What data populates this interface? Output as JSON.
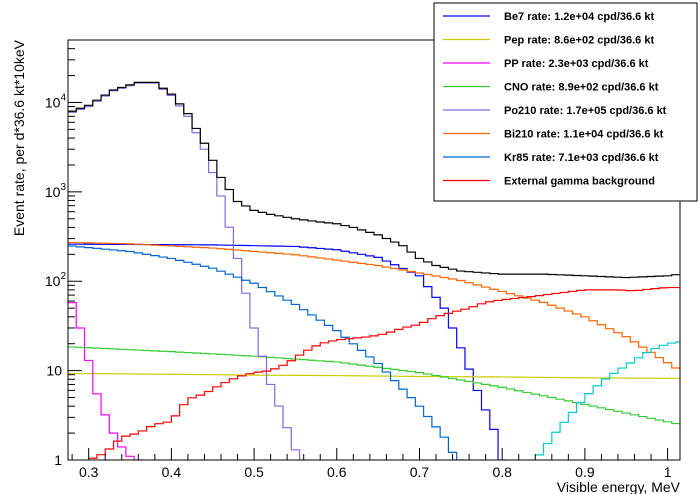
{
  "chart_data": {
    "type": "line",
    "title": "",
    "xlabel": "Visible energy, MeV",
    "ylabel": "Event rate, per d*36.6 kt*10keV",
    "xlim": [
      0.275,
      1.015
    ],
    "ylim": [
      1,
      50000
    ],
    "yscale": "log",
    "grid": false,
    "legend_position": "top-right",
    "x_ticks": [
      0.3,
      0.4,
      0.5,
      0.6,
      0.7,
      0.8,
      0.9,
      1
    ],
    "x_tick_labels": [
      "0.3",
      "0.4",
      "0.5",
      "0.6",
      "0.7",
      "0.8",
      "0.9",
      "1"
    ],
    "y_ticks": [
      1,
      10,
      100,
      1000,
      10000
    ],
    "y_tick_labels": [
      {
        "base": "1",
        "exp": ""
      },
      {
        "base": "10",
        "exp": ""
      },
      {
        "base": "10",
        "exp": "2"
      },
      {
        "base": "10",
        "exp": "3"
      },
      {
        "base": "10",
        "exp": "4"
      }
    ],
    "series": [
      {
        "name": "Be7 rate: 1.2e+04 cpd/36.6 kt",
        "color": "#0000ff",
        "in_legend": true,
        "points": [
          [
            0.275,
            260
          ],
          [
            0.35,
            258
          ],
          [
            0.45,
            255
          ],
          [
            0.55,
            245
          ],
          [
            0.6,
            225
          ],
          [
            0.65,
            185
          ],
          [
            0.7,
            115
          ],
          [
            0.73,
            50
          ],
          [
            0.75,
            18
          ],
          [
            0.77,
            6
          ],
          [
            0.79,
            2.2
          ],
          [
            0.8,
            1.0
          ]
        ]
      },
      {
        "name": "Pep rate: 8.6e+02 cpd/36.6 kt",
        "color": "#cccc00",
        "in_legend": true,
        "points": [
          [
            0.275,
            9.3
          ],
          [
            0.4,
            9.1
          ],
          [
            0.5,
            8.9
          ],
          [
            0.6,
            8.8
          ],
          [
            0.7,
            8.6
          ],
          [
            0.8,
            8.5
          ],
          [
            0.9,
            8.3
          ],
          [
            1.015,
            8.2
          ]
        ]
      },
      {
        "name": "PP rate: 2.3e+03 cpd/36.6 kt",
        "color": "#ff00ff",
        "in_legend": true,
        "points": [
          [
            0.275,
            80
          ],
          [
            0.29,
            30
          ],
          [
            0.3,
            13
          ],
          [
            0.31,
            5.5
          ],
          [
            0.32,
            3.2
          ],
          [
            0.33,
            2.0
          ],
          [
            0.34,
            1.4
          ],
          [
            0.35,
            1.1
          ],
          [
            0.36,
            1.0
          ]
        ]
      },
      {
        "name": "CNO rate: 8.9e+02 cpd/36.6 kt",
        "color": "#33cc33",
        "in_legend": true,
        "points": [
          [
            0.275,
            18.5
          ],
          [
            0.4,
            16.3
          ],
          [
            0.5,
            14.5
          ],
          [
            0.6,
            12.5
          ],
          [
            0.7,
            9.5
          ],
          [
            0.8,
            6.5
          ],
          [
            0.9,
            4.2
          ],
          [
            1.015,
            2.5
          ]
        ]
      },
      {
        "name": "Po210 rate: 1.7e+05 cpd/36.6 kt",
        "color": "#8866dd",
        "in_legend": true,
        "points": [
          [
            0.275,
            7500
          ],
          [
            0.3,
            9000
          ],
          [
            0.33,
            13500
          ],
          [
            0.36,
            16500
          ],
          [
            0.38,
            16500
          ],
          [
            0.4,
            12000
          ],
          [
            0.42,
            7000
          ],
          [
            0.44,
            3000
          ],
          [
            0.46,
            900
          ],
          [
            0.48,
            180
          ],
          [
            0.5,
            30
          ],
          [
            0.52,
            7
          ],
          [
            0.54,
            2.3
          ],
          [
            0.55,
            1.3
          ],
          [
            0.555,
            1.0
          ]
        ]
      },
      {
        "name": "Bi210 rate: 1.1e+04 cpd/36.6 kt",
        "color": "#ff6600",
        "in_legend": true,
        "points": [
          [
            0.275,
            272
          ],
          [
            0.35,
            262
          ],
          [
            0.45,
            235
          ],
          [
            0.55,
            198
          ],
          [
            0.65,
            150
          ],
          [
            0.75,
            102
          ],
          [
            0.85,
            58
          ],
          [
            0.9,
            40
          ],
          [
            0.95,
            24
          ],
          [
            0.99,
            14
          ],
          [
            1.015,
            10
          ]
        ]
      },
      {
        "name": "Kr85 rate: 7.1e+03 cpd/36.6 kt",
        "color": "#0066cc",
        "in_legend": true,
        "points": [
          [
            0.275,
            250
          ],
          [
            0.35,
            215
          ],
          [
            0.4,
            180
          ],
          [
            0.45,
            140
          ],
          [
            0.5,
            95
          ],
          [
            0.55,
            55
          ],
          [
            0.6,
            28
          ],
          [
            0.65,
            12
          ],
          [
            0.7,
            4
          ],
          [
            0.73,
            1.8
          ],
          [
            0.745,
            1.0
          ]
        ]
      },
      {
        "name": "External gamma background",
        "color": "#ff0000",
        "in_legend": true,
        "points": [
          [
            0.3,
            1.0
          ],
          [
            0.32,
            1.2
          ],
          [
            0.34,
            1.8
          ],
          [
            0.36,
            2.0
          ],
          [
            0.38,
            2.5
          ],
          [
            0.4,
            2.7
          ],
          [
            0.42,
            4.8
          ],
          [
            0.44,
            5.5
          ],
          [
            0.46,
            7.0
          ],
          [
            0.48,
            8.5
          ],
          [
            0.5,
            9.5
          ],
          [
            0.52,
            10
          ],
          [
            0.54,
            12
          ],
          [
            0.56,
            16
          ],
          [
            0.58,
            20
          ],
          [
            0.6,
            22
          ],
          [
            0.62,
            23
          ],
          [
            0.64,
            24
          ],
          [
            0.66,
            26
          ],
          [
            0.68,
            30
          ],
          [
            0.7,
            33
          ],
          [
            0.72,
            40
          ],
          [
            0.74,
            45
          ],
          [
            0.76,
            50
          ],
          [
            0.78,
            58
          ],
          [
            0.8,
            62
          ],
          [
            0.82,
            65
          ],
          [
            0.84,
            68
          ],
          [
            0.86,
            72
          ],
          [
            0.88,
            76
          ],
          [
            0.9,
            80
          ],
          [
            0.92,
            80
          ],
          [
            0.94,
            80
          ],
          [
            0.96,
            78
          ],
          [
            0.98,
            82
          ],
          [
            1.0,
            85
          ],
          [
            1.015,
            85
          ]
        ]
      },
      {
        "name": "",
        "color": "#00cccc",
        "in_legend": false,
        "points": [
          [
            0.84,
            1.0
          ],
          [
            0.85,
            1.3
          ],
          [
            0.86,
            1.8
          ],
          [
            0.88,
            3.0
          ],
          [
            0.9,
            5.0
          ],
          [
            0.92,
            7.5
          ],
          [
            0.94,
            10
          ],
          [
            0.96,
            13
          ],
          [
            0.98,
            17
          ],
          [
            1.0,
            20
          ],
          [
            1.015,
            21
          ]
        ]
      },
      {
        "name": "",
        "color": "#000000",
        "in_legend": false,
        "points": [
          [
            0.275,
            7700
          ],
          [
            0.3,
            9300
          ],
          [
            0.33,
            13800
          ],
          [
            0.36,
            16800
          ],
          [
            0.38,
            16800
          ],
          [
            0.4,
            12400
          ],
          [
            0.42,
            7500
          ],
          [
            0.44,
            3500
          ],
          [
            0.46,
            1450
          ],
          [
            0.48,
            780
          ],
          [
            0.5,
            620
          ],
          [
            0.52,
            560
          ],
          [
            0.55,
            500
          ],
          [
            0.58,
            460
          ],
          [
            0.6,
            440
          ],
          [
            0.62,
            400
          ],
          [
            0.65,
            330
          ],
          [
            0.68,
            250
          ],
          [
            0.7,
            180
          ],
          [
            0.72,
            150
          ],
          [
            0.75,
            130
          ],
          [
            0.8,
            120
          ],
          [
            0.85,
            120
          ],
          [
            0.9,
            115
          ],
          [
            0.95,
            110
          ],
          [
            1.0,
            115
          ],
          [
            1.015,
            120
          ]
        ]
      }
    ]
  }
}
